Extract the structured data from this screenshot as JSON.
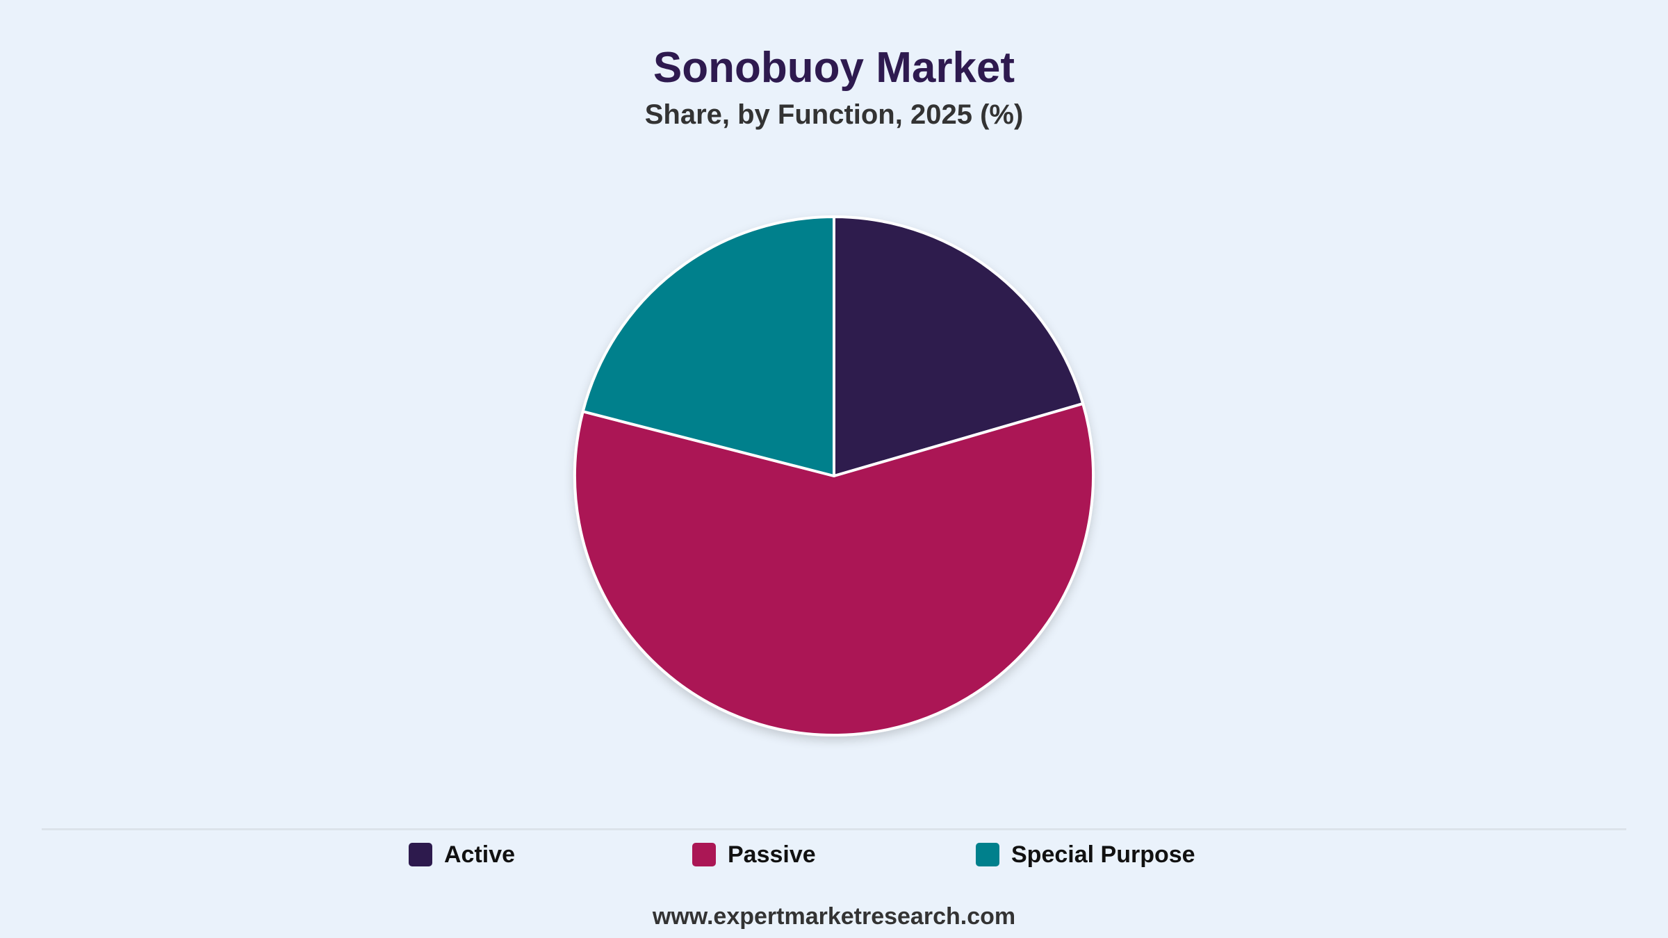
{
  "header": {
    "title": "Sonobuoy Market",
    "subtitle": "Share, by Function, 2025 (%)"
  },
  "footer": {
    "source": "www.expertmarketresearch.com"
  },
  "colors": {
    "background": "#EAF2FB",
    "slice_border": "#FFFFFF"
  },
  "chart_data": {
    "type": "pie",
    "title": "Sonobuoy Market",
    "subtitle": "Share, by Function, 2025 (%)",
    "start_angle_deg": 0,
    "direction": "clockwise",
    "legend_position": "bottom",
    "slices": [
      {
        "label": "Active",
        "value": 20.5,
        "color": "#2D1A4D"
      },
      {
        "label": "Passive",
        "value": 58.5,
        "color": "#AB1755"
      },
      {
        "label": "Special Purpose",
        "value": 21.0,
        "color": "#00808C"
      }
    ]
  }
}
